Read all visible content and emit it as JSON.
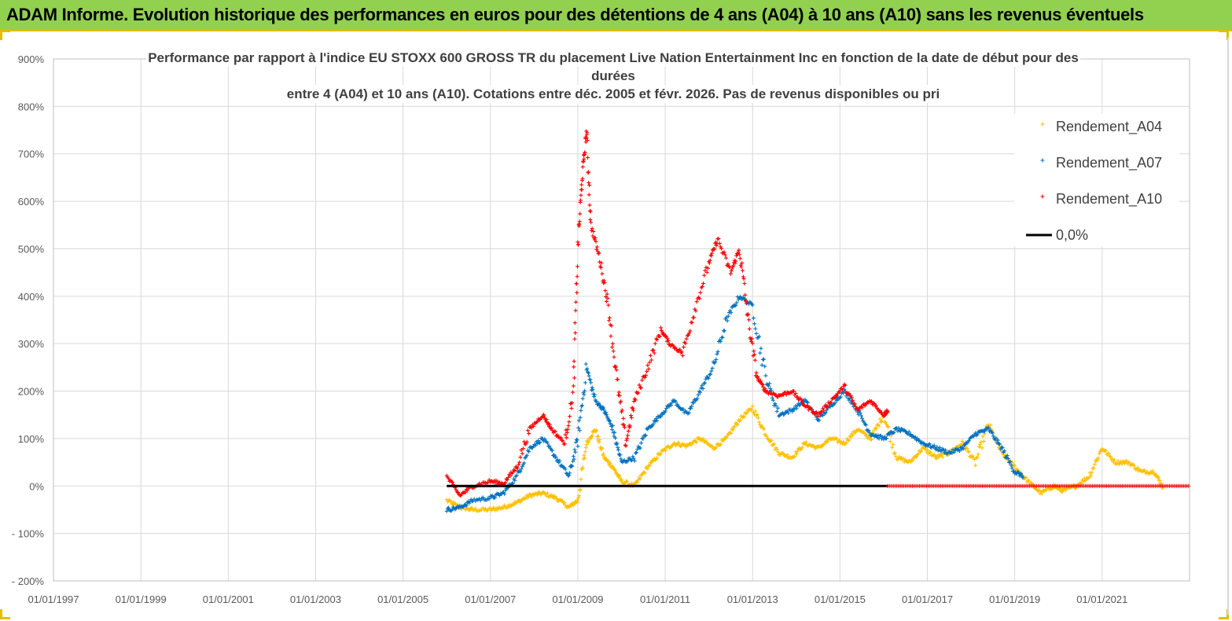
{
  "header": {
    "title": "ADAM Informe. Evolution historique des performances en euros pour des détentions de 4 ans (A04) à 10 ans (A10) sans les revenus éventuels"
  },
  "chart_data": {
    "type": "scatter",
    "title_lines": [
      "Performance par rapport à l'indice EU STOXX 600 GROSS TR  du placement Live Nation Entertainment Inc en fonction de la date de début pour des",
      "durées",
      "entre 4 (A04) et 10 ans (A10). Cotations entre déc. 2005 et févr. 2026. Pas de revenus disponibles ou pri"
    ],
    "x_tick_labels": [
      "01/01/1997",
      "01/01/1999",
      "01/01/2001",
      "01/01/2003",
      "01/01/2005",
      "01/01/2007",
      "01/01/2009",
      "01/01/2011",
      "01/01/2013",
      "01/01/2015",
      "01/01/2017",
      "01/01/2019",
      "01/01/2021"
    ],
    "x_tick_years": [
      1997,
      1999,
      2001,
      2003,
      2005,
      2007,
      2009,
      2011,
      2013,
      2015,
      2017,
      2019,
      2021
    ],
    "xlim": [
      1997,
      2023
    ],
    "y_tick_labels": [
      "- 200%",
      "- 100%",
      "0%",
      "100%",
      "200%",
      "300%",
      "400%",
      "500%",
      "600%",
      "700%",
      "800%",
      "900%"
    ],
    "y_tick_values": [
      -200,
      -100,
      0,
      100,
      200,
      300,
      400,
      500,
      600,
      700,
      800,
      900
    ],
    "ylim": [
      -200,
      900
    ],
    "legend": {
      "position": "right",
      "entries": [
        {
          "label": "Rendement_A04",
          "color": "#ffc000",
          "marker": "+"
        },
        {
          "label": "Rendement_A07",
          "color": "#0070c0",
          "marker": "+"
        },
        {
          "label": "Rendement_A10",
          "color": "#ff0000",
          "marker": "+"
        },
        {
          "label": "0,0%",
          "color": "#000000",
          "marker": "line"
        }
      ]
    },
    "series": [
      {
        "name": "Rendement_A04",
        "color": "#ffc000",
        "x": [
          2006.0,
          2006.3,
          2006.6,
          2007.0,
          2007.3,
          2007.6,
          2007.9,
          2008.2,
          2008.5,
          2008.8,
          2009.0,
          2009.2,
          2009.4,
          2009.6,
          2009.8,
          2010.0,
          2010.3,
          2010.6,
          2010.9,
          2011.2,
          2011.5,
          2011.8,
          2012.1,
          2012.4,
          2012.7,
          2013.0,
          2013.3,
          2013.6,
          2013.9,
          2014.2,
          2014.5,
          2014.8,
          2015.1,
          2015.4,
          2015.7,
          2016.0,
          2016.3,
          2016.6,
          2016.9,
          2017.2,
          2017.5,
          2017.8,
          2018.1,
          2018.4,
          2018.7,
          2019.0,
          2019.3,
          2019.6,
          2019.9,
          2020.1,
          2020.4,
          2020.7,
          2021.0,
          2021.3,
          2021.6,
          2021.9,
          2022.2,
          2022.4
        ],
        "values": [
          -30,
          -45,
          -50,
          -50,
          -45,
          -35,
          -20,
          -15,
          -25,
          -45,
          -30,
          90,
          120,
          60,
          40,
          10,
          0,
          40,
          70,
          90,
          85,
          100,
          80,
          100,
          140,
          165,
          110,
          70,
          60,
          90,
          80,
          100,
          90,
          120,
          100,
          150,
          60,
          50,
          80,
          60,
          70,
          90,
          50,
          130,
          70,
          40,
          10,
          -15,
          0,
          -10,
          0,
          20,
          80,
          50,
          50,
          30,
          30,
          -5
        ]
      },
      {
        "name": "Rendement_A07",
        "color": "#0070c0",
        "x": [
          2006.0,
          2006.3,
          2006.6,
          2007.0,
          2007.3,
          2007.6,
          2007.9,
          2008.2,
          2008.5,
          2008.8,
          2009.0,
          2009.2,
          2009.4,
          2009.6,
          2009.8,
          2010.0,
          2010.3,
          2010.6,
          2010.9,
          2011.2,
          2011.5,
          2011.8,
          2012.1,
          2012.4,
          2012.7,
          2013.0,
          2013.3,
          2013.6,
          2013.9,
          2014.2,
          2014.5,
          2014.8,
          2015.1,
          2015.4,
          2015.7,
          2016.0,
          2016.3,
          2016.6,
          2016.9,
          2017.2,
          2017.5,
          2017.8,
          2018.1,
          2018.4,
          2018.7,
          2019.0,
          2019.2
        ],
        "values": [
          -50,
          -45,
          -30,
          -25,
          -15,
          20,
          80,
          100,
          60,
          20,
          100,
          250,
          180,
          160,
          120,
          50,
          60,
          120,
          150,
          180,
          150,
          200,
          250,
          350,
          400,
          380,
          230,
          150,
          160,
          180,
          140,
          170,
          200,
          160,
          110,
          100,
          120,
          110,
          90,
          80,
          70,
          80,
          110,
          120,
          80,
          30,
          20
        ]
      },
      {
        "name": "Rendement_A10",
        "color": "#ff0000",
        "x": [
          2006.0,
          2006.3,
          2006.6,
          2007.0,
          2007.3,
          2007.6,
          2007.9,
          2008.2,
          2008.4,
          2008.7,
          2008.9,
          2009.0,
          2009.1,
          2009.2,
          2009.3,
          2009.5,
          2009.7,
          2009.9,
          2010.1,
          2010.3,
          2010.6,
          2010.9,
          2011.1,
          2011.4,
          2011.7,
          2012.0,
          2012.2,
          2012.5,
          2012.7,
          2012.9,
          2013.1,
          2013.3,
          2013.6,
          2013.9,
          2014.2,
          2014.5,
          2014.8,
          2015.1,
          2015.4,
          2015.7,
          2016.0,
          2016.1
        ],
        "values": [
          20,
          -20,
          0,
          10,
          5,
          40,
          120,
          150,
          120,
          90,
          200,
          500,
          650,
          750,
          550,
          480,
          380,
          220,
          90,
          180,
          250,
          330,
          300,
          280,
          380,
          470,
          520,
          450,
          500,
          350,
          230,
          200,
          190,
          200,
          170,
          150,
          180,
          210,
          160,
          180,
          150,
          160
        ]
      }
    ],
    "zero_line": {
      "label": "0,0%",
      "value": 0,
      "x_range": [
        2006.0,
        2016.1
      ]
    },
    "a10_flat": {
      "value": 0,
      "x_range": [
        2016.1,
        2023
      ]
    }
  }
}
